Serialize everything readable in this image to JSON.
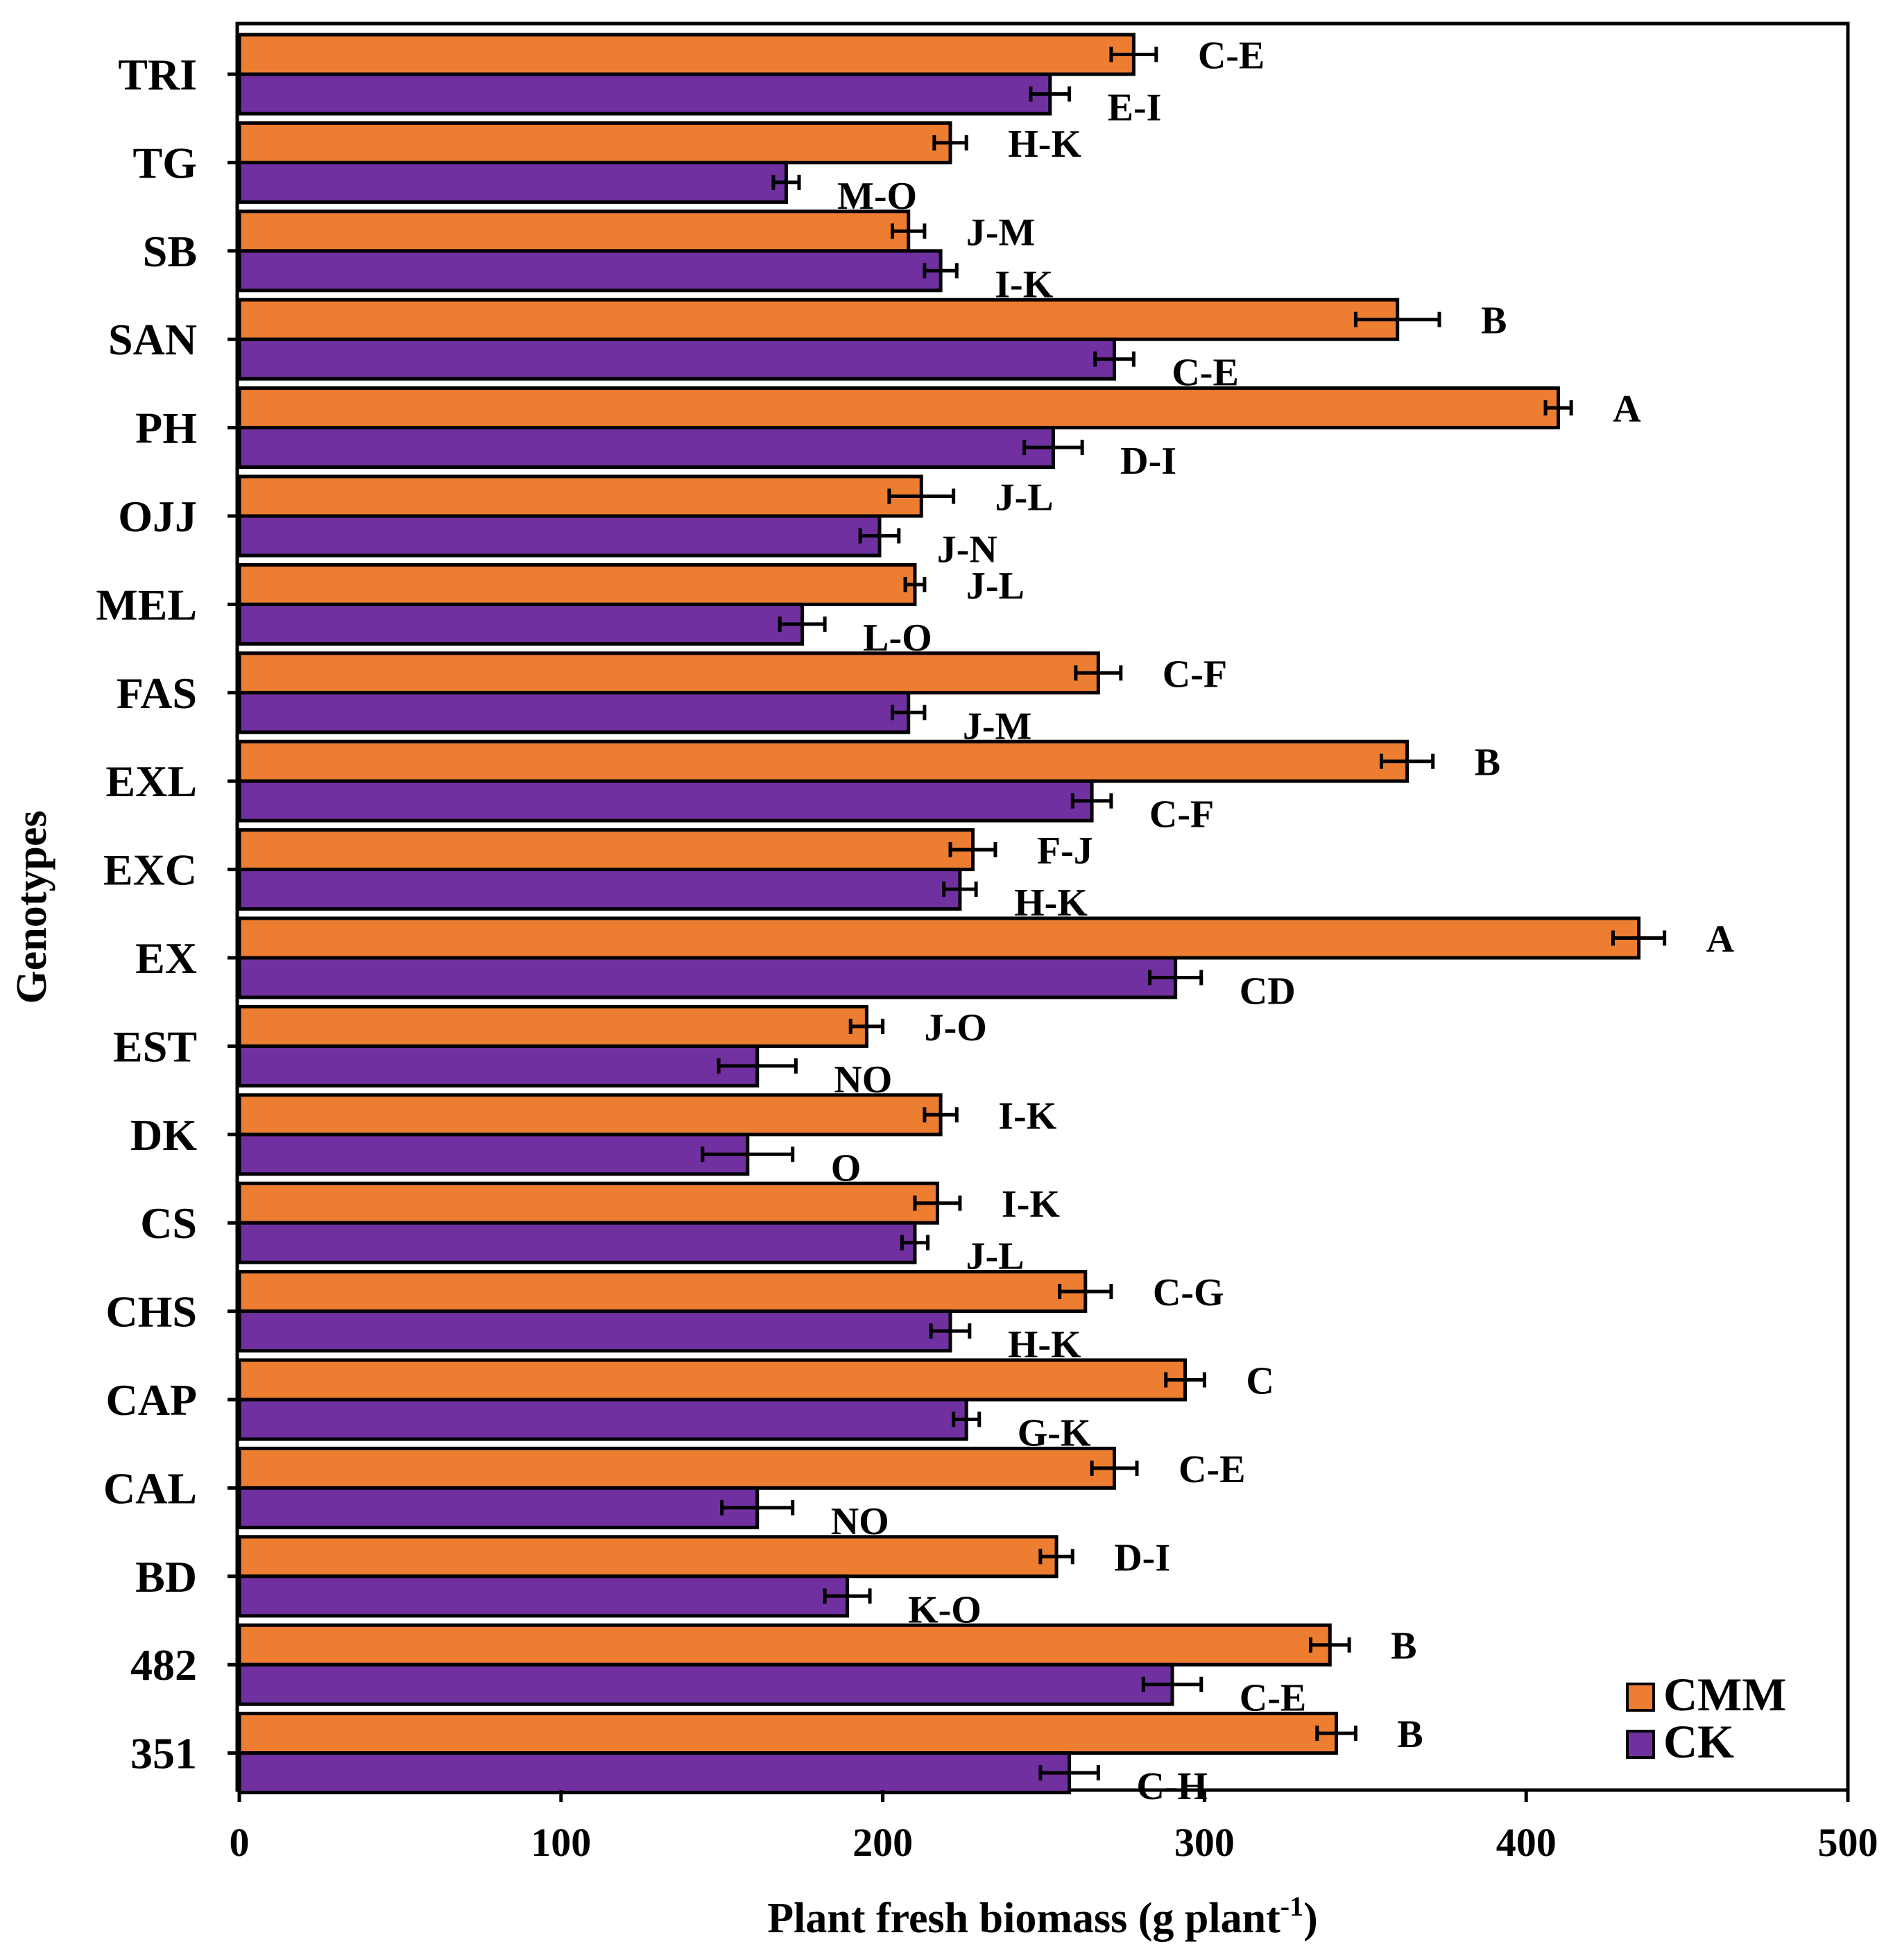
{
  "chart_data": {
    "type": "bar",
    "orientation": "horizontal",
    "xlabel": "Plant fresh biomass (g plant",
    "xlabel_sup": "-1",
    "xlabel_close": ")",
    "ylabel": "Genotypes",
    "xlim": [
      0,
      500
    ],
    "xticks": [
      "0",
      "100",
      "200",
      "300",
      "400",
      "500"
    ],
    "grid": false,
    "legend_position": "bottom-right",
    "categories": [
      "TRI",
      "TG",
      "SB",
      "SAN",
      "PH",
      "OJJ",
      "MEL",
      "FAS",
      "EXL",
      "EXC",
      "EX",
      "EST",
      "DK",
      "CS",
      "CHS",
      "CAP",
      "CAL",
      "BD",
      "482",
      "351"
    ],
    "series": [
      {
        "name": "CMM",
        "color": "#ED7D31",
        "values": [
          278,
          221,
          208,
          360,
          410,
          212,
          210,
          267,
          363,
          228,
          435,
          195,
          218,
          217,
          263,
          294,
          272,
          254,
          339,
          341
        ],
        "errors": [
          7,
          5,
          5,
          13,
          4,
          10,
          3,
          7,
          8,
          7,
          8,
          5,
          5,
          7,
          8,
          6,
          7,
          5,
          6,
          6
        ],
        "labels": [
          "C-E",
          "H-K",
          "J-M",
          "B",
          "A",
          "J-L",
          "J-L",
          "C-F",
          "B",
          "F-J",
          "A",
          "J-O",
          "I-K",
          "I-K",
          "C-G",
          "C",
          "C-E",
          "D-I",
          "B",
          "B"
        ]
      },
      {
        "name": "CK",
        "color": "#7030A0",
        "values": [
          252,
          170,
          218,
          272,
          253,
          199,
          175,
          208,
          265,
          224,
          291,
          161,
          158,
          210,
          221,
          226,
          161,
          189,
          290,
          258
        ],
        "errors": [
          6,
          4,
          5,
          6,
          9,
          6,
          7,
          5,
          6,
          5,
          8,
          12,
          14,
          4,
          6,
          4,
          11,
          7,
          9,
          9
        ],
        "labels": [
          "E-I",
          "M-O",
          "I-K",
          "C-E",
          "D-I",
          "J-N",
          "L-O",
          "J-M",
          "C-F",
          "H-K",
          "CD",
          "NO",
          "O",
          "J-L",
          "H-K",
          "G-K",
          "NO",
          "K-O",
          "C-E",
          "C-H"
        ]
      }
    ]
  }
}
